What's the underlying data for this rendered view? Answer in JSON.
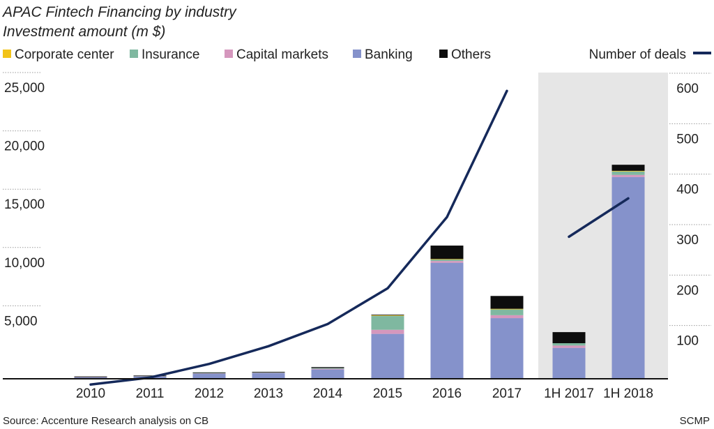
{
  "title": "APAC Fintech Financing by industry",
  "subtitle": "Investment amount (m $)",
  "source": "Source: Accenture Research analysis on CB",
  "credit": "SCMP",
  "colors": {
    "corporate_center": "#f2c318",
    "insurance": "#7fb8a0",
    "capital_markets": "#d597bd",
    "banking": "#8592cb",
    "others": "#0d0d0d",
    "deals_line": "#15295a",
    "highlight_band": "#e6e6e6",
    "gridline": "#9a9a9a"
  },
  "legend": [
    {
      "key": "corporate_center",
      "label": "Corporate center"
    },
    {
      "key": "insurance",
      "label": "Insurance"
    },
    {
      "key": "capital_markets",
      "label": "Capital markets"
    },
    {
      "key": "banking",
      "label": "Banking"
    },
    {
      "key": "others",
      "label": "Others"
    }
  ],
  "line_legend_label": "Number of deals",
  "chart_data": {
    "type": "bar",
    "stacked": true,
    "title": "APAC Fintech Financing by industry",
    "subtitle": "Investment amount (m $)",
    "categories": [
      "2010",
      "2011",
      "2012",
      "2013",
      "2014",
      "2015",
      "2016",
      "2017",
      "1H 2017",
      "1H 2018"
    ],
    "highlighted_categories": [
      "1H 2017",
      "1H 2018"
    ],
    "y_left": {
      "min": 0,
      "max": 25000,
      "ticks": [
        5000,
        10000,
        15000,
        20000,
        25000
      ],
      "tick_labels": [
        "5,000",
        "10,000",
        "15,000",
        "20,000",
        "25,000"
      ]
    },
    "y_right": {
      "min": 0,
      "max": 600,
      "ticks": [
        100,
        200,
        300,
        400,
        500,
        600
      ],
      "tick_labels": [
        "100",
        "200",
        "300",
        "400",
        "500",
        "600"
      ]
    },
    "grid": true,
    "series": [
      {
        "key": "banking",
        "name": "Banking",
        "values": [
          150,
          220,
          450,
          500,
          800,
          3850,
          9950,
          5200,
          2650,
          17300
        ]
      },
      {
        "key": "capital_markets",
        "name": "Capital markets",
        "values": [
          20,
          20,
          30,
          30,
          60,
          350,
          150,
          250,
          200,
          180
        ]
      },
      {
        "key": "insurance",
        "name": "Insurance",
        "values": [
          20,
          20,
          30,
          30,
          60,
          1200,
          150,
          500,
          200,
          300
        ]
      },
      {
        "key": "corporate_center",
        "name": "Corporate center",
        "values": [
          0,
          0,
          0,
          0,
          0,
          50,
          20,
          50,
          0,
          50
        ]
      },
      {
        "key": "others",
        "name": "Others",
        "values": [
          10,
          20,
          40,
          40,
          80,
          50,
          1150,
          1100,
          950,
          520
        ]
      }
    ],
    "line_series": [
      {
        "name": "Number of deals",
        "axis": "right",
        "segment": "annual",
        "categories": [
          "2010",
          "2011",
          "2012",
          "2013",
          "2014",
          "2015",
          "2016",
          "2017"
        ],
        "values": [
          12,
          26,
          53,
          88,
          132,
          203,
          344,
          594
        ]
      },
      {
        "name": "Number of deals",
        "axis": "right",
        "segment": "half-year",
        "categories": [
          "1H 2017",
          "1H 2018"
        ],
        "values": [
          305,
          381
        ]
      }
    ]
  }
}
